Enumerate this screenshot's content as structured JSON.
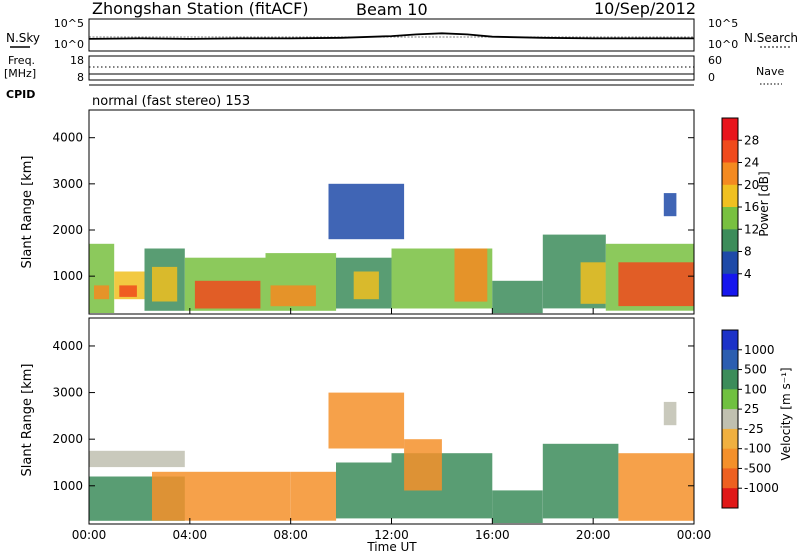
{
  "header": {
    "station": "Zhongshan Station (fitACF)",
    "beam": "Beam 10",
    "date": "10/Sep/2012"
  },
  "left_labels": {
    "nsky": "N.Sky",
    "freq": "Freq.",
    "freq_unit": "[MHz]",
    "cpid": "CPID"
  },
  "right_labels": {
    "nsearch": "N.Search",
    "nave": "Nave"
  },
  "top_scales": {
    "noise_left": [
      "10^5",
      "10^0"
    ],
    "noise_right": [
      "10^5",
      "10^0"
    ],
    "freq_left": [
      "18",
      "8"
    ],
    "nave_right": [
      "60",
      "0"
    ]
  },
  "cpid_text": "normal (fast stereo) 153",
  "axes": {
    "ylabel": "Slant Range [km]",
    "yticks": [
      "4000",
      "3000",
      "2000",
      "1000"
    ],
    "xlabel": "Time UT",
    "xticks": [
      "00:00",
      "04:00",
      "08:00",
      "12:00",
      "16:00",
      "20:00",
      "00:00"
    ]
  },
  "colorbars": {
    "power": {
      "label": "Power [dB]",
      "ticks": [
        "28",
        "24",
        "20",
        "16",
        "12",
        "8",
        "4"
      ],
      "colors": [
        "#e8141c",
        "#f04a1c",
        "#f48a20",
        "#f0c020",
        "#78c040",
        "#3c8c5a",
        "#1e4aa8",
        "#1616ee"
      ]
    },
    "velocity": {
      "label": "Velocity [m s⁻¹]",
      "ticks": [
        "1000",
        "500",
        "100",
        "25",
        "-25",
        "-100",
        "-500",
        "-1000"
      ],
      "colors": [
        "#1c32c8",
        "#2c5eb0",
        "#3c8c5a",
        "#70c040",
        "#c0c0b0",
        "#f0b040",
        "#f4902a",
        "#ee6020",
        "#e01818"
      ]
    }
  },
  "chart_data": [
    {
      "type": "line",
      "title": "N.Sky / N.Search",
      "x": [
        0,
        2,
        4,
        6,
        8,
        10,
        12,
        13,
        14,
        15,
        16,
        18,
        20,
        22,
        24
      ],
      "series": [
        {
          "name": "N.Sky",
          "values": [
            1.8,
            1.9,
            1.8,
            1.9,
            1.9,
            2.0,
            2.3,
            2.6,
            2.8,
            2.6,
            2.2,
            2.0,
            1.9,
            1.9,
            1.9
          ]
        },
        {
          "name": "N.Search",
          "values": [
            1.7,
            1.7,
            1.7,
            1.8,
            1.8,
            1.9,
            2.1,
            2.4,
            2.5,
            2.4,
            2.1,
            1.9,
            1.8,
            1.8,
            1.8
          ]
        }
      ],
      "yscale": "log"
    },
    {
      "type": "line",
      "title": "Freq. / Nave",
      "x": [
        0,
        4,
        8,
        12,
        16,
        20,
        24
      ],
      "series": [
        {
          "name": "Freq.",
          "values": [
            10.2,
            10.2,
            10.2,
            10.2,
            10.2,
            10.2,
            10.2
          ]
        },
        {
          "name": "Nave",
          "values": [
            38,
            38,
            38,
            38,
            38,
            38,
            38
          ]
        }
      ]
    },
    {
      "type": "heatmap",
      "title": "Power [dB]",
      "xlabel": "Time UT",
      "ylabel": "Slant Range [km]",
      "xlim": [
        0,
        24
      ],
      "ylim": [
        180,
        4600
      ],
      "blocks": [
        {
          "t0": 0.0,
          "t1": 1.0,
          "r0": 200,
          "r1": 1700,
          "v": 14
        },
        {
          "t0": 0.2,
          "t1": 0.8,
          "r0": 500,
          "r1": 800,
          "v": 22
        },
        {
          "t0": 1.0,
          "t1": 2.2,
          "r0": 500,
          "r1": 1100,
          "v": 18
        },
        {
          "t0": 1.2,
          "t1": 1.9,
          "r0": 550,
          "r1": 800,
          "v": 24
        },
        {
          "t0": 2.2,
          "t1": 3.8,
          "r0": 250,
          "r1": 1600,
          "v": 9
        },
        {
          "t0": 2.5,
          "t1": 3.5,
          "r0": 450,
          "r1": 1200,
          "v": 17
        },
        {
          "t0": 3.8,
          "t1": 7.0,
          "r0": 250,
          "r1": 1400,
          "v": 11
        },
        {
          "t0": 4.2,
          "t1": 6.8,
          "r0": 300,
          "r1": 900,
          "v": 25
        },
        {
          "t0": 7.0,
          "t1": 9.8,
          "r0": 250,
          "r1": 1500,
          "v": 12
        },
        {
          "t0": 7.2,
          "t1": 9.0,
          "r0": 350,
          "r1": 800,
          "v": 21
        },
        {
          "t0": 9.8,
          "t1": 12.0,
          "r0": 300,
          "r1": 1400,
          "v": 10
        },
        {
          "t0": 10.5,
          "t1": 11.5,
          "r0": 500,
          "r1": 1100,
          "v": 17
        },
        {
          "t0": 12.0,
          "t1": 16.0,
          "r0": 300,
          "r1": 1600,
          "v": 12
        },
        {
          "t0": 14.5,
          "t1": 15.8,
          "r0": 450,
          "r1": 1600,
          "v": 21
        },
        {
          "t0": 16.0,
          "t1": 18.0,
          "r0": 200,
          "r1": 900,
          "v": 7
        },
        {
          "t0": 18.0,
          "t1": 20.5,
          "r0": 300,
          "r1": 1900,
          "v": 9
        },
        {
          "t0": 19.5,
          "t1": 20.5,
          "r0": 400,
          "r1": 1300,
          "v": 15
        },
        {
          "t0": 20.5,
          "t1": 24.0,
          "r0": 250,
          "r1": 1700,
          "v": 13
        },
        {
          "t0": 21.0,
          "t1": 24.0,
          "r0": 350,
          "r1": 1300,
          "v": 26
        },
        {
          "t0": 22.8,
          "t1": 23.3,
          "r0": 2300,
          "r1": 2800,
          "v": 6
        },
        {
          "t0": 9.5,
          "t1": 12.5,
          "r0": 1800,
          "r1": 3000,
          "v": 5
        }
      ]
    },
    {
      "type": "heatmap",
      "title": "Velocity [m s⁻¹]",
      "xlabel": "Time UT",
      "ylabel": "Slant Range [km]",
      "xlim": [
        0,
        24
      ],
      "ylim": [
        180,
        4600
      ],
      "blocks": [
        {
          "t0": 0.0,
          "t1": 3.8,
          "r0": 1400,
          "r1": 1750,
          "v": 0
        },
        {
          "t0": 0.0,
          "t1": 3.8,
          "r0": 250,
          "r1": 1200,
          "v": 150
        },
        {
          "t0": 2.5,
          "t1": 8.0,
          "r0": 250,
          "r1": 1300,
          "v": -300
        },
        {
          "t0": 8.0,
          "t1": 9.8,
          "r0": 250,
          "r1": 1300,
          "v": -120
        },
        {
          "t0": 9.8,
          "t1": 12.0,
          "r0": 300,
          "r1": 1500,
          "v": 150
        },
        {
          "t0": 12.0,
          "t1": 16.0,
          "r0": 300,
          "r1": 1700,
          "v": 120
        },
        {
          "t0": 12.5,
          "t1": 14.0,
          "r0": 900,
          "r1": 2000,
          "v": -450
        },
        {
          "t0": 16.0,
          "t1": 18.0,
          "r0": 200,
          "r1": 900,
          "v": 200
        },
        {
          "t0": 18.0,
          "t1": 21.0,
          "r0": 300,
          "r1": 1900,
          "v": 140
        },
        {
          "t0": 21.0,
          "t1": 24.0,
          "r0": 250,
          "r1": 1700,
          "v": -150
        },
        {
          "t0": 22.8,
          "t1": 23.3,
          "r0": 2300,
          "r1": 2800,
          "v": 0
        },
        {
          "t0": 9.5,
          "t1": 12.5,
          "r0": 1800,
          "r1": 3000,
          "v": -300
        }
      ]
    }
  ]
}
